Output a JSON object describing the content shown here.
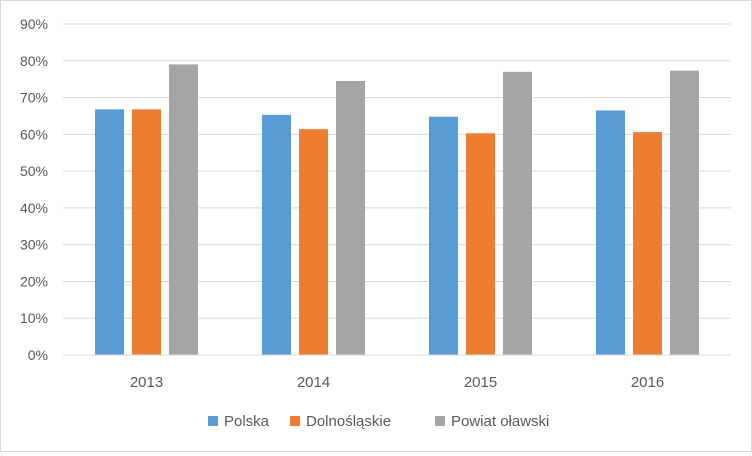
{
  "chart_data": {
    "type": "bar",
    "title": "",
    "xlabel": "",
    "ylabel": "",
    "categories": [
      "2013",
      "2014",
      "2015",
      "2016"
    ],
    "ylim": [
      0,
      90
    ],
    "yticks": [
      0,
      10,
      20,
      30,
      40,
      50,
      60,
      70,
      80,
      90
    ],
    "ytick_suffix": "%",
    "grid": true,
    "legend_position": "bottom",
    "series": [
      {
        "name": "Polska",
        "color": "#5b9bd5",
        "values": [
          66.8,
          65.3,
          64.8,
          66.5
        ]
      },
      {
        "name": "Dolnośląskie",
        "color": "#ed7d31",
        "values": [
          66.8,
          61.4,
          60.3,
          60.6
        ]
      },
      {
        "name": "Powiat oławski",
        "color": "#a5a5a5",
        "values": [
          79.0,
          74.5,
          77.0,
          77.3
        ]
      }
    ]
  }
}
